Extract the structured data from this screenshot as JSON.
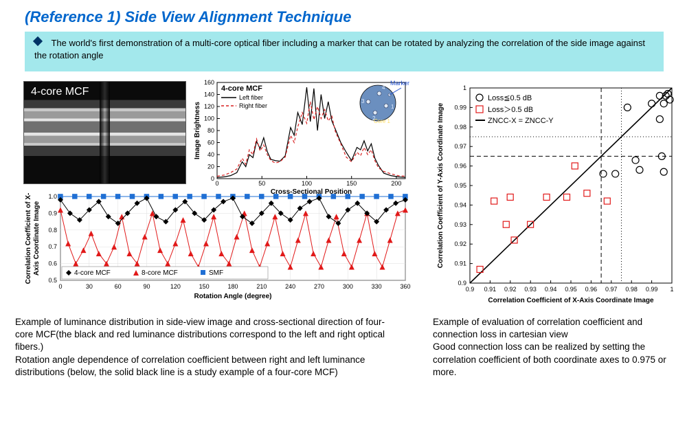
{
  "title": "(Reference 1) Side View Alignment Technique",
  "banner": "The world's first demonstration of a multi-core optical fiber including a marker that can be rotated by analyzing the correlation of the side image against the rotation angle",
  "sideview_label": "4-core MCF",
  "caption_left_p1": "Example of luminance distribution in side-view image and cross-sectional direction of four-core MCF(the black and red luminance distributions correspond to the left and right optical fibers.)",
  "caption_left_p2": "Rotation angle dependence of correlation coefficient between right and left luminance distributions (below, the solid black line is a study example of a four-core MCF)",
  "caption_right_p1": "Example of evaluation of correlation coefficient and connection loss in cartesian view",
  "caption_right_p2": "Good connection loss can be realized by setting the correlation coefficient of both coordinate axes to 0.975 or more.",
  "brightness_chart": {
    "type": "line",
    "title": "4-core MCF",
    "legend": [
      "Left fiber",
      "Right fiber"
    ],
    "marker_label": "Marker",
    "core_labels": [
      "1",
      "2",
      "3",
      "4"
    ],
    "core_title": "Core 1",
    "xlim": [
      0,
      210
    ],
    "xtick_step": 50,
    "ylim": [
      0,
      160
    ],
    "ytick_step": 20,
    "xlabel": "Cross-Sectional Position",
    "ylabel": "Image Brightness",
    "series": {
      "left": {
        "color": "#000000",
        "width": 1.2,
        "dash": "",
        "data": [
          [
            0,
            2
          ],
          [
            8,
            3
          ],
          [
            15,
            5
          ],
          [
            22,
            10
          ],
          [
            28,
            28
          ],
          [
            32,
            20
          ],
          [
            36,
            40
          ],
          [
            40,
            35
          ],
          [
            44,
            62
          ],
          [
            48,
            50
          ],
          [
            52,
            68
          ],
          [
            56,
            45
          ],
          [
            60,
            32
          ],
          [
            65,
            30
          ],
          [
            70,
            29
          ],
          [
            76,
            38
          ],
          [
            82,
            85
          ],
          [
            86,
            72
          ],
          [
            90,
            110
          ],
          [
            95,
            90
          ],
          [
            100,
            152
          ],
          [
            104,
            95
          ],
          [
            108,
            150
          ],
          [
            112,
            80
          ],
          [
            116,
            140
          ],
          [
            120,
            100
          ],
          [
            124,
            128
          ],
          [
            128,
            96
          ],
          [
            132,
            82
          ],
          [
            138,
            60
          ],
          [
            144,
            44
          ],
          [
            150,
            30
          ],
          [
            156,
            52
          ],
          [
            160,
            48
          ],
          [
            164,
            63
          ],
          [
            168,
            46
          ],
          [
            172,
            58
          ],
          [
            176,
            34
          ],
          [
            180,
            22
          ],
          [
            186,
            9
          ],
          [
            194,
            5
          ],
          [
            202,
            3
          ],
          [
            210,
            2
          ]
        ]
      },
      "right": {
        "color": "#d81e1e",
        "width": 1.2,
        "dash": "4 3",
        "data": [
          [
            0,
            4
          ],
          [
            8,
            6
          ],
          [
            15,
            10
          ],
          [
            22,
            16
          ],
          [
            28,
            34
          ],
          [
            32,
            24
          ],
          [
            36,
            48
          ],
          [
            40,
            40
          ],
          [
            44,
            66
          ],
          [
            48,
            46
          ],
          [
            52,
            56
          ],
          [
            56,
            40
          ],
          [
            60,
            30
          ],
          [
            65,
            26
          ],
          [
            70,
            28
          ],
          [
            76,
            36
          ],
          [
            82,
            72
          ],
          [
            86,
            60
          ],
          [
            90,
            86
          ],
          [
            95,
            110
          ],
          [
            100,
            92
          ],
          [
            104,
            128
          ],
          [
            108,
            98
          ],
          [
            112,
            120
          ],
          [
            116,
            100
          ],
          [
            120,
            115
          ],
          [
            124,
            96
          ],
          [
            128,
            104
          ],
          [
            132,
            78
          ],
          [
            138,
            58
          ],
          [
            144,
            36
          ],
          [
            150,
            28
          ],
          [
            156,
            44
          ],
          [
            160,
            38
          ],
          [
            164,
            52
          ],
          [
            168,
            40
          ],
          [
            172,
            48
          ],
          [
            176,
            30
          ],
          [
            180,
            18
          ],
          [
            186,
            12
          ],
          [
            194,
            8
          ],
          [
            202,
            5
          ],
          [
            210,
            4
          ]
        ]
      }
    },
    "colors": {
      "bg": "#ffffff",
      "axis": "#000000"
    }
  },
  "rotation_chart": {
    "type": "line-marker",
    "xlim": [
      0,
      360
    ],
    "xtick_step": 30,
    "ylim": [
      0.5,
      1.0
    ],
    "ytick_step": 0.1,
    "xlabel": "Rotation Angle (degree)",
    "ylabel": "Correlation Coefficient of X-Axis Coordinate Image",
    "legend": [
      "4-core MCF",
      "8-core MCF",
      "SMF"
    ],
    "series": {
      "smf": {
        "color": "#1f6fd4",
        "marker": "square-dash",
        "size": 5,
        "data": [
          [
            0,
            1
          ],
          [
            15,
            1
          ],
          [
            30,
            1
          ],
          [
            45,
            1
          ],
          [
            60,
            1
          ],
          [
            75,
            1
          ],
          [
            90,
            1
          ],
          [
            105,
            1
          ],
          [
            120,
            1
          ],
          [
            135,
            1
          ],
          [
            150,
            1
          ],
          [
            165,
            1
          ],
          [
            180,
            1
          ],
          [
            195,
            1
          ],
          [
            210,
            1
          ],
          [
            225,
            1
          ],
          [
            240,
            1
          ],
          [
            255,
            1
          ],
          [
            270,
            1
          ],
          [
            285,
            1
          ],
          [
            300,
            1
          ],
          [
            315,
            1
          ],
          [
            330,
            1
          ],
          [
            345,
            1
          ],
          [
            360,
            1
          ]
        ]
      },
      "mcf4": {
        "color": "#000000",
        "marker": "diamond",
        "size": 4,
        "data": [
          [
            0,
            0.98
          ],
          [
            10,
            0.9
          ],
          [
            20,
            0.86
          ],
          [
            30,
            0.92
          ],
          [
            40,
            0.97
          ],
          [
            50,
            0.88
          ],
          [
            60,
            0.84
          ],
          [
            70,
            0.9
          ],
          [
            80,
            0.96
          ],
          [
            90,
            0.99
          ],
          [
            100,
            0.88
          ],
          [
            110,
            0.85
          ],
          [
            120,
            0.92
          ],
          [
            130,
            0.97
          ],
          [
            140,
            0.9
          ],
          [
            150,
            0.86
          ],
          [
            160,
            0.92
          ],
          [
            170,
            0.97
          ],
          [
            180,
            0.99
          ],
          [
            190,
            0.88
          ],
          [
            200,
            0.84
          ],
          [
            210,
            0.9
          ],
          [
            220,
            0.96
          ],
          [
            230,
            0.9
          ],
          [
            240,
            0.86
          ],
          [
            250,
            0.93
          ],
          [
            260,
            0.97
          ],
          [
            270,
            0.99
          ],
          [
            280,
            0.88
          ],
          [
            290,
            0.84
          ],
          [
            300,
            0.92
          ],
          [
            310,
            0.96
          ],
          [
            320,
            0.9
          ],
          [
            330,
            0.85
          ],
          [
            340,
            0.92
          ],
          [
            350,
            0.96
          ],
          [
            360,
            0.98
          ]
        ]
      },
      "mcf8": {
        "color": "#e11919",
        "marker": "triangle",
        "size": 4,
        "data": [
          [
            0,
            0.92
          ],
          [
            8,
            0.72
          ],
          [
            16,
            0.6
          ],
          [
            24,
            0.68
          ],
          [
            32,
            0.78
          ],
          [
            40,
            0.66
          ],
          [
            48,
            0.6
          ],
          [
            56,
            0.7
          ],
          [
            64,
            0.88
          ],
          [
            72,
            0.66
          ],
          [
            80,
            0.6
          ],
          [
            88,
            0.76
          ],
          [
            96,
            0.9
          ],
          [
            104,
            0.68
          ],
          [
            112,
            0.6
          ],
          [
            120,
            0.72
          ],
          [
            128,
            0.86
          ],
          [
            136,
            0.66
          ],
          [
            144,
            0.58
          ],
          [
            152,
            0.72
          ],
          [
            160,
            0.88
          ],
          [
            168,
            0.66
          ],
          [
            176,
            0.6
          ],
          [
            184,
            0.76
          ],
          [
            192,
            0.9
          ],
          [
            200,
            0.68
          ],
          [
            208,
            0.58
          ],
          [
            216,
            0.72
          ],
          [
            224,
            0.88
          ],
          [
            232,
            0.66
          ],
          [
            240,
            0.58
          ],
          [
            248,
            0.74
          ],
          [
            256,
            0.9
          ],
          [
            264,
            0.66
          ],
          [
            272,
            0.58
          ],
          [
            280,
            0.74
          ],
          [
            288,
            0.88
          ],
          [
            296,
            0.66
          ],
          [
            304,
            0.58
          ],
          [
            312,
            0.74
          ],
          [
            320,
            0.9
          ],
          [
            328,
            0.66
          ],
          [
            336,
            0.58
          ],
          [
            344,
            0.74
          ],
          [
            352,
            0.9
          ],
          [
            360,
            0.92
          ]
        ]
      }
    }
  },
  "scatter_chart": {
    "type": "scatter",
    "xlim": [
      0.9,
      1.0
    ],
    "xtick_step": 0.01,
    "ylim": [
      0.9,
      1.0
    ],
    "ytick_step": 0.01,
    "xlabel": "Correlation Coefficient of X-Axis Coordinate Image",
    "ylabel": "Correlation Coefficient of Y-Axis Coordinate Image",
    "legend": {
      "low": "Loss≦0.5 dB",
      "high": "Loss＞0.5 dB",
      "diag": "ZNCC-X = ZNCC-Y"
    },
    "ref_dash": 0.965,
    "ref_dot": 0.975,
    "low": {
      "color": "#000000",
      "marker": "circle-open",
      "size": 5,
      "points": [
        [
          0.966,
          0.956
        ],
        [
          0.972,
          0.956
        ],
        [
          0.978,
          0.99
        ],
        [
          0.982,
          0.963
        ],
        [
          0.984,
          0.958
        ],
        [
          0.99,
          0.992
        ],
        [
          0.994,
          0.996
        ],
        [
          0.994,
          0.984
        ],
        [
          0.995,
          0.965
        ],
        [
          0.996,
          0.992
        ],
        [
          0.997,
          0.996
        ],
        [
          0.998,
          0.997
        ],
        [
          0.999,
          0.994
        ],
        [
          0.996,
          0.957
        ]
      ]
    },
    "high": {
      "color": "#e11919",
      "marker": "square-open",
      "size": 6,
      "points": [
        [
          0.905,
          0.907
        ],
        [
          0.912,
          0.942
        ],
        [
          0.918,
          0.93
        ],
        [
          0.92,
          0.944
        ],
        [
          0.922,
          0.922
        ],
        [
          0.93,
          0.93
        ],
        [
          0.938,
          0.944
        ],
        [
          0.948,
          0.944
        ],
        [
          0.952,
          0.96
        ],
        [
          0.958,
          0.946
        ],
        [
          0.968,
          0.942
        ]
      ]
    }
  },
  "palette": {
    "title": "#0066cc",
    "banner_bg": "#a3e8ec",
    "diamond": "#003366",
    "marker_arrow": "#1f4fd0",
    "inset_fill": "#6b8fbf"
  }
}
